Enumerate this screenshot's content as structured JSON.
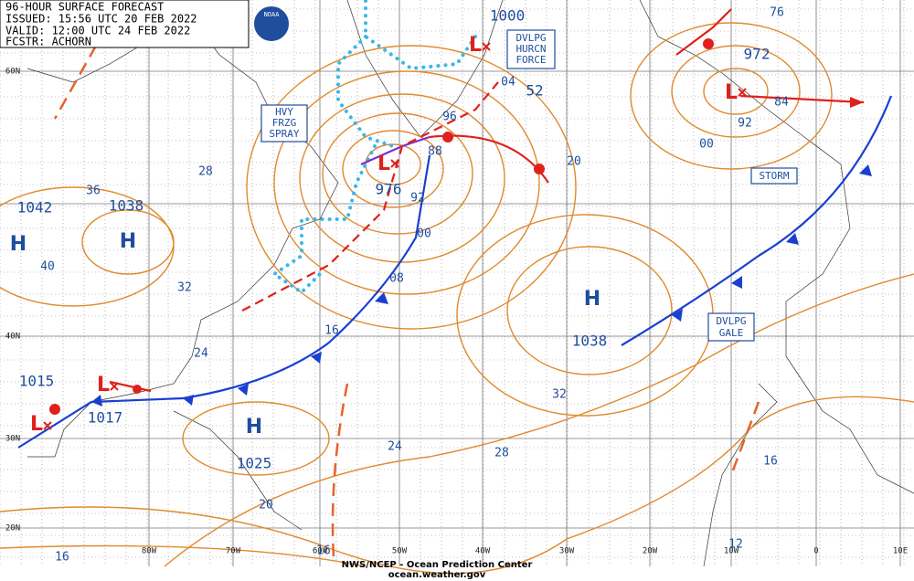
{
  "header": {
    "lines": [
      "96-HOUR SURFACE FORECAST",
      "ISSUED: 15:56 UTC 20 FEB 2022",
      "VALID: 12:00 UTC 24 FEB 2022",
      "FCSTR: ACHORN"
    ]
  },
  "logo": "NOAA",
  "centers": [
    {
      "symbol": "H",
      "pressure": "1042"
    },
    {
      "symbol": "H",
      "pressure": "1038"
    },
    {
      "symbol": "H",
      "pressure": "1038"
    },
    {
      "symbol": "H",
      "pressure": "1025"
    },
    {
      "symbol": "L",
      "pressure": "972"
    },
    {
      "symbol": "L",
      "pressure": "976"
    },
    {
      "symbol": "L",
      "pressure": "1000"
    },
    {
      "symbol": "L",
      "pressure": "1015"
    },
    {
      "symbol": "L",
      "pressure": "1017"
    }
  ],
  "pressure_labels": [
    "52"
  ],
  "isobar_labels": [
    "76",
    "84",
    "92",
    "00",
    "04",
    "96",
    "88",
    "92",
    "00",
    "08",
    "16",
    "24",
    "32",
    "40",
    "36",
    "28",
    "20",
    "32",
    "28",
    "24",
    "20",
    "16",
    "12",
    "16",
    "16"
  ],
  "boxes": [
    {
      "lines": [
        "DVLPG",
        "HURCN",
        "FORCE"
      ]
    },
    {
      "lines": [
        "HVY",
        "FRZG",
        "SPRAY"
      ]
    },
    {
      "lines": [
        "STORM"
      ]
    },
    {
      "lines": [
        "DVLPG",
        "GALE"
      ]
    }
  ],
  "lat_labels": [
    "60N",
    "40N",
    "30N",
    "20N"
  ],
  "lon_labels": [
    "80W",
    "70W",
    "60W",
    "50W",
    "40W",
    "30W",
    "20W",
    "10W",
    "0",
    "10E"
  ],
  "footer": {
    "lines": [
      "NWS/NCEP - Ocean Prediction Center",
      "ocean.weather.gov"
    ]
  }
}
